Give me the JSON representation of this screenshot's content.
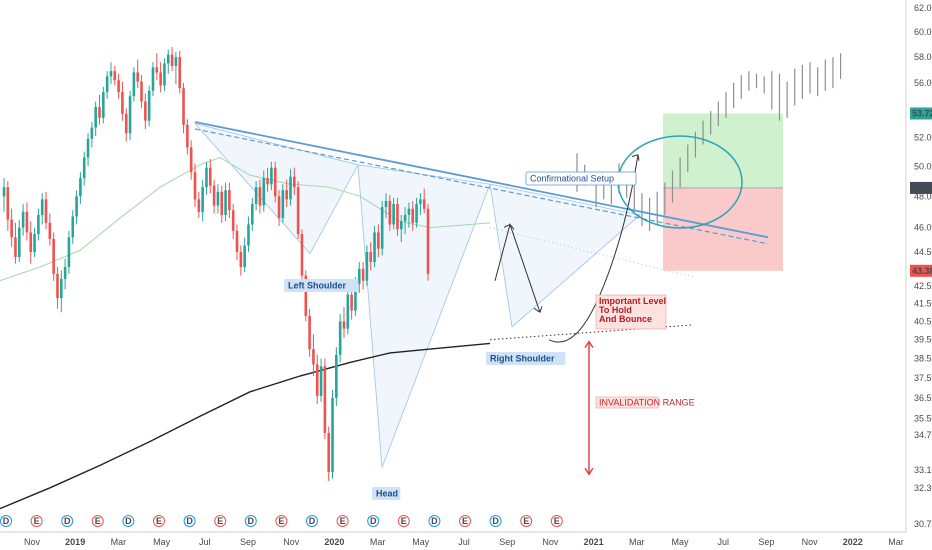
{
  "colors": {
    "up": "#26a69a",
    "down": "#ef5350",
    "ghost": "#8f8f8f",
    "trend": "#5b9bd5",
    "ema50": "#a5d6a7",
    "ma200": "#222222",
    "ellipse": "#2aa3b8",
    "target_fill": "#c8eec4",
    "stop_fill": "#f9c1c1",
    "arrow_red": "#e53935",
    "price_tag_green": "#26a69a",
    "price_tag_red": "#ef5350",
    "price_tag_dark": "#424b5a",
    "label_bg": "#cfe2f6",
    "label_text": "#1f4e8c"
  },
  "chart_data": {
    "type": "candlestick",
    "y_axis": {
      "position": "right",
      "scale": "log",
      "ticks": [
        30.75,
        32.3,
        33.1,
        34.7,
        35.5,
        36.5,
        37.5,
        38.5,
        39.5,
        40.5,
        41.5,
        42.5,
        43.38,
        44.5,
        46.0,
        48.0,
        48.55,
        50.0,
        52.0,
        53.72,
        56.0,
        58.0,
        60.0,
        62.0
      ]
    },
    "x_axis": {
      "ticks": [
        "Nov",
        "2019",
        "Mar",
        "May",
        "Jul",
        "Sep",
        "Nov",
        "2020",
        "Mar",
        "May",
        "Jul",
        "Sep",
        "Nov",
        "2021",
        "Mar",
        "May",
        "Jul",
        "Sep",
        "Nov",
        "2022",
        "Mar"
      ]
    },
    "price_tags": [
      {
        "label": "53.72",
        "value": 53.72,
        "kind": "target"
      },
      {
        "label": "48.55",
        "value": 48.55,
        "kind": "current"
      },
      {
        "label": "43.38",
        "value": 43.38,
        "kind": "stop"
      }
    ],
    "candles": [
      {
        "o": 48.0,
        "h": 49.2,
        "l": 47.0,
        "c": 48.6
      },
      {
        "o": 48.6,
        "h": 49.0,
        "l": 45.8,
        "c": 46.5
      },
      {
        "o": 46.5,
        "h": 47.2,
        "l": 44.8,
        "c": 45.4
      },
      {
        "o": 45.4,
        "h": 46.3,
        "l": 43.8,
        "c": 44.2
      },
      {
        "o": 44.2,
        "h": 46.5,
        "l": 43.9,
        "c": 46.0
      },
      {
        "o": 46.0,
        "h": 47.5,
        "l": 45.5,
        "c": 47.0
      },
      {
        "o": 47.0,
        "h": 47.6,
        "l": 45.2,
        "c": 45.7
      },
      {
        "o": 45.7,
        "h": 46.4,
        "l": 43.8,
        "c": 44.5
      },
      {
        "o": 44.5,
        "h": 46.0,
        "l": 44.2,
        "c": 45.6
      },
      {
        "o": 45.6,
        "h": 47.2,
        "l": 45.2,
        "c": 46.8
      },
      {
        "o": 46.8,
        "h": 48.2,
        "l": 46.2,
        "c": 47.8
      },
      {
        "o": 47.8,
        "h": 48.3,
        "l": 45.9,
        "c": 46.3
      },
      {
        "o": 46.3,
        "h": 46.9,
        "l": 44.9,
        "c": 45.3
      },
      {
        "o": 45.3,
        "h": 45.7,
        "l": 42.8,
        "c": 43.2
      },
      {
        "o": 43.2,
        "h": 43.6,
        "l": 41.2,
        "c": 41.8
      },
      {
        "o": 41.8,
        "h": 43.4,
        "l": 41.0,
        "c": 42.9
      },
      {
        "o": 42.9,
        "h": 44.1,
        "l": 42.3,
        "c": 43.6
      },
      {
        "o": 43.6,
        "h": 45.8,
        "l": 43.2,
        "c": 45.4
      },
      {
        "o": 45.4,
        "h": 47.1,
        "l": 45.0,
        "c": 46.7
      },
      {
        "o": 46.7,
        "h": 48.4,
        "l": 46.2,
        "c": 48.0
      },
      {
        "o": 48.0,
        "h": 49.6,
        "l": 47.5,
        "c": 49.2
      },
      {
        "o": 49.2,
        "h": 51.0,
        "l": 48.7,
        "c": 50.6
      },
      {
        "o": 50.6,
        "h": 52.3,
        "l": 50.0,
        "c": 51.9
      },
      {
        "o": 51.9,
        "h": 53.1,
        "l": 51.3,
        "c": 52.7
      },
      {
        "o": 52.7,
        "h": 54.6,
        "l": 52.1,
        "c": 54.2
      },
      {
        "o": 54.2,
        "h": 55.1,
        "l": 52.9,
        "c": 53.4
      },
      {
        "o": 53.4,
        "h": 55.7,
        "l": 53.0,
        "c": 55.3
      },
      {
        "o": 55.3,
        "h": 56.9,
        "l": 54.8,
        "c": 56.5
      },
      {
        "o": 56.5,
        "h": 57.6,
        "l": 55.9,
        "c": 56.9
      },
      {
        "o": 56.9,
        "h": 57.3,
        "l": 55.8,
        "c": 56.2
      },
      {
        "o": 56.2,
        "h": 56.7,
        "l": 54.8,
        "c": 55.3
      },
      {
        "o": 55.3,
        "h": 56.1,
        "l": 53.2,
        "c": 53.7
      },
      {
        "o": 53.7,
        "h": 54.1,
        "l": 51.7,
        "c": 52.3
      },
      {
        "o": 52.3,
        "h": 55.4,
        "l": 51.8,
        "c": 55.0
      },
      {
        "o": 55.0,
        "h": 57.2,
        "l": 54.6,
        "c": 56.8
      },
      {
        "o": 56.8,
        "h": 57.8,
        "l": 55.6,
        "c": 56.1
      },
      {
        "o": 56.1,
        "h": 56.6,
        "l": 54.1,
        "c": 54.6
      },
      {
        "o": 54.6,
        "h": 55.2,
        "l": 52.6,
        "c": 53.2
      },
      {
        "o": 53.2,
        "h": 55.8,
        "l": 52.8,
        "c": 55.4
      },
      {
        "o": 55.4,
        "h": 57.6,
        "l": 55.0,
        "c": 57.2
      },
      {
        "o": 57.2,
        "h": 58.3,
        "l": 56.2,
        "c": 56.8
      },
      {
        "o": 56.8,
        "h": 57.6,
        "l": 55.3,
        "c": 55.8
      },
      {
        "o": 55.8,
        "h": 57.9,
        "l": 55.4,
        "c": 57.5
      },
      {
        "o": 57.5,
        "h": 58.6,
        "l": 56.7,
        "c": 58.2
      },
      {
        "o": 58.2,
        "h": 58.8,
        "l": 56.9,
        "c": 57.3
      },
      {
        "o": 57.3,
        "h": 58.4,
        "l": 55.9,
        "c": 58.0
      },
      {
        "o": 58.0,
        "h": 58.5,
        "l": 55.2,
        "c": 55.6
      },
      {
        "o": 55.6,
        "h": 56.0,
        "l": 52.3,
        "c": 52.9
      },
      {
        "o": 52.9,
        "h": 53.3,
        "l": 50.8,
        "c": 51.3
      },
      {
        "o": 51.3,
        "h": 51.8,
        "l": 49.1,
        "c": 49.6
      },
      {
        "o": 49.6,
        "h": 50.2,
        "l": 47.3,
        "c": 47.8
      },
      {
        "o": 47.8,
        "h": 48.3,
        "l": 46.6,
        "c": 47.0
      },
      {
        "o": 47.0,
        "h": 49.1,
        "l": 46.4,
        "c": 48.6
      },
      {
        "o": 48.6,
        "h": 50.3,
        "l": 48.1,
        "c": 49.9
      },
      {
        "o": 49.9,
        "h": 50.5,
        "l": 48.2,
        "c": 48.7
      },
      {
        "o": 48.7,
        "h": 49.1,
        "l": 46.9,
        "c": 47.4
      },
      {
        "o": 47.4,
        "h": 48.8,
        "l": 46.9,
        "c": 48.3
      },
      {
        "o": 48.3,
        "h": 48.7,
        "l": 46.3,
        "c": 46.8
      },
      {
        "o": 46.8,
        "h": 48.9,
        "l": 46.4,
        "c": 48.4
      },
      {
        "o": 48.4,
        "h": 48.9,
        "l": 46.6,
        "c": 47.1
      },
      {
        "o": 47.1,
        "h": 47.5,
        "l": 45.3,
        "c": 45.8
      },
      {
        "o": 45.8,
        "h": 46.2,
        "l": 44.0,
        "c": 44.5
      },
      {
        "o": 44.5,
        "h": 44.9,
        "l": 43.1,
        "c": 43.6
      },
      {
        "o": 43.6,
        "h": 45.4,
        "l": 43.3,
        "c": 44.9
      },
      {
        "o": 44.9,
        "h": 46.7,
        "l": 44.5,
        "c": 46.2
      },
      {
        "o": 46.2,
        "h": 47.9,
        "l": 45.8,
        "c": 47.5
      },
      {
        "o": 47.5,
        "h": 49.0,
        "l": 47.1,
        "c": 48.6
      },
      {
        "o": 48.6,
        "h": 49.1,
        "l": 46.9,
        "c": 47.4
      },
      {
        "o": 47.4,
        "h": 49.7,
        "l": 47.0,
        "c": 49.2
      },
      {
        "o": 49.2,
        "h": 49.9,
        "l": 48.3,
        "c": 48.8
      },
      {
        "o": 48.8,
        "h": 50.3,
        "l": 48.4,
        "c": 49.9
      },
      {
        "o": 49.9,
        "h": 50.3,
        "l": 47.6,
        "c": 48.0
      },
      {
        "o": 48.0,
        "h": 48.4,
        "l": 46.1,
        "c": 46.6
      },
      {
        "o": 46.6,
        "h": 48.8,
        "l": 46.3,
        "c": 48.4
      },
      {
        "o": 48.4,
        "h": 49.1,
        "l": 47.3,
        "c": 47.8
      },
      {
        "o": 47.8,
        "h": 49.8,
        "l": 47.4,
        "c": 49.3
      },
      {
        "o": 49.3,
        "h": 49.9,
        "l": 48.1,
        "c": 48.6
      },
      {
        "o": 48.6,
        "h": 49.0,
        "l": 45.3,
        "c": 45.6
      },
      {
        "o": 45.6,
        "h": 45.9,
        "l": 42.8,
        "c": 43.1
      },
      {
        "o": 43.1,
        "h": 43.4,
        "l": 40.5,
        "c": 40.8
      },
      {
        "o": 40.8,
        "h": 41.2,
        "l": 38.6,
        "c": 39.0
      },
      {
        "o": 39.0,
        "h": 39.8,
        "l": 37.6,
        "c": 38.2
      },
      {
        "o": 38.2,
        "h": 38.7,
        "l": 36.2,
        "c": 36.6
      },
      {
        "o": 36.6,
        "h": 38.5,
        "l": 36.3,
        "c": 38.1
      },
      {
        "o": 38.1,
        "h": 38.5,
        "l": 34.5,
        "c": 34.8
      },
      {
        "o": 34.8,
        "h": 35.1,
        "l": 32.6,
        "c": 33.0
      },
      {
        "o": 33.0,
        "h": 36.9,
        "l": 32.7,
        "c": 36.5
      },
      {
        "o": 36.5,
        "h": 39.1,
        "l": 36.1,
        "c": 38.7
      },
      {
        "o": 38.7,
        "h": 40.9,
        "l": 38.3,
        "c": 40.5
      },
      {
        "o": 40.5,
        "h": 41.3,
        "l": 39.6,
        "c": 40.1
      },
      {
        "o": 40.1,
        "h": 42.4,
        "l": 39.8,
        "c": 42.0
      },
      {
        "o": 42.0,
        "h": 42.6,
        "l": 40.6,
        "c": 41.1
      },
      {
        "o": 41.1,
        "h": 43.0,
        "l": 40.8,
        "c": 42.6
      },
      {
        "o": 42.6,
        "h": 43.9,
        "l": 42.1,
        "c": 43.5
      },
      {
        "o": 43.5,
        "h": 43.9,
        "l": 42.3,
        "c": 42.8
      },
      {
        "o": 42.8,
        "h": 44.9,
        "l": 42.5,
        "c": 44.5
      },
      {
        "o": 44.5,
        "h": 45.1,
        "l": 43.4,
        "c": 43.9
      },
      {
        "o": 43.9,
        "h": 46.1,
        "l": 43.6,
        "c": 45.7
      },
      {
        "o": 45.7,
        "h": 46.2,
        "l": 44.2,
        "c": 44.7
      },
      {
        "o": 44.7,
        "h": 47.7,
        "l": 44.3,
        "c": 47.3
      },
      {
        "o": 47.3,
        "h": 48.2,
        "l": 46.6,
        "c": 47.7
      },
      {
        "o": 47.7,
        "h": 48.1,
        "l": 45.8,
        "c": 46.2
      },
      {
        "o": 46.2,
        "h": 47.9,
        "l": 45.9,
        "c": 47.5
      },
      {
        "o": 47.5,
        "h": 47.9,
        "l": 45.5,
        "c": 45.9
      },
      {
        "o": 45.9,
        "h": 46.8,
        "l": 45.1,
        "c": 46.4
      },
      {
        "o": 46.4,
        "h": 47.3,
        "l": 45.6,
        "c": 46.8
      },
      {
        "o": 46.8,
        "h": 47.6,
        "l": 46.0,
        "c": 47.2
      },
      {
        "o": 47.2,
        "h": 47.7,
        "l": 45.8,
        "c": 46.3
      },
      {
        "o": 46.3,
        "h": 47.9,
        "l": 46.0,
        "c": 47.5
      },
      {
        "o": 47.5,
        "h": 48.2,
        "l": 46.8,
        "c": 47.8
      },
      {
        "o": 47.8,
        "h": 48.5,
        "l": 46.9,
        "c": 47.2
      },
      {
        "o": 47.2,
        "h": 47.5,
        "l": 42.8,
        "c": 43.2
      }
    ],
    "projection_bars": [
      {
        "i": 150,
        "h": 50.9,
        "l": 48.3
      },
      {
        "i": 152,
        "h": 50.1,
        "l": 48.7
      },
      {
        "i": 155,
        "h": 49.0,
        "l": 47.3
      },
      {
        "i": 157,
        "h": 49.6,
        "l": 47.8
      },
      {
        "i": 159,
        "h": 49.3,
        "l": 47.5
      },
      {
        "i": 161,
        "h": 50.2,
        "l": 48.2
      },
      {
        "i": 163,
        "h": 49.5,
        "l": 47.9
      },
      {
        "i": 165,
        "h": 48.8,
        "l": 47.0
      },
      {
        "i": 167,
        "h": 48.2,
        "l": 46.1
      },
      {
        "i": 169,
        "h": 47.9,
        "l": 45.8
      },
      {
        "i": 171,
        "h": 48.3,
        "l": 46.2
      },
      {
        "i": 173,
        "h": 48.9,
        "l": 46.8
      },
      {
        "i": 175,
        "h": 49.7,
        "l": 47.6
      },
      {
        "i": 177,
        "h": 50.6,
        "l": 48.6
      },
      {
        "i": 179,
        "h": 51.5,
        "l": 49.6
      },
      {
        "i": 181,
        "h": 52.4,
        "l": 50.6
      },
      {
        "i": 183,
        "h": 53.2,
        "l": 51.5
      },
      {
        "i": 185,
        "h": 53.9,
        "l": 52.2
      },
      {
        "i": 187,
        "h": 54.6,
        "l": 52.8
      },
      {
        "i": 189,
        "h": 55.3,
        "l": 53.4
      },
      {
        "i": 191,
        "h": 56.0,
        "l": 54.1
      },
      {
        "i": 193,
        "h": 56.6,
        "l": 54.8
      },
      {
        "i": 195,
        "h": 56.9,
        "l": 55.4
      },
      {
        "i": 197,
        "h": 56.7,
        "l": 55.6
      },
      {
        "i": 199,
        "h": 56.5,
        "l": 55.2
      },
      {
        "i": 201,
        "h": 56.9,
        "l": 54.0
      },
      {
        "i": 203,
        "h": 56.7,
        "l": 53.2
      },
      {
        "i": 205,
        "h": 56.1,
        "l": 53.4
      },
      {
        "i": 207,
        "h": 57.1,
        "l": 54.3
      },
      {
        "i": 209,
        "h": 57.4,
        "l": 54.8
      },
      {
        "i": 211,
        "h": 57.6,
        "l": 55.2
      },
      {
        "i": 213,
        "h": 57.2,
        "l": 55.0
      },
      {
        "i": 215,
        "h": 57.8,
        "l": 55.4
      },
      {
        "i": 217,
        "h": 58.0,
        "l": 55.6
      },
      {
        "i": 219,
        "h": 58.3,
        "l": 56.3
      }
    ],
    "annotations": {
      "left_shoulder": "Left Shoulder",
      "head": "Head",
      "right_shoulder": "Right Shoulder",
      "confirmational_setup": "Confirmational Setup",
      "important_level": [
        "Important Level",
        "To Hold",
        "And Bounce"
      ],
      "invalidation_range": "INVALIDATION RANGE"
    },
    "events": [
      "D",
      "E",
      "D",
      "E",
      "D",
      "E",
      "D",
      "E",
      "D",
      "E",
      "D",
      "E",
      "D",
      "E",
      "D",
      "E",
      "D",
      "E",
      "E"
    ]
  }
}
